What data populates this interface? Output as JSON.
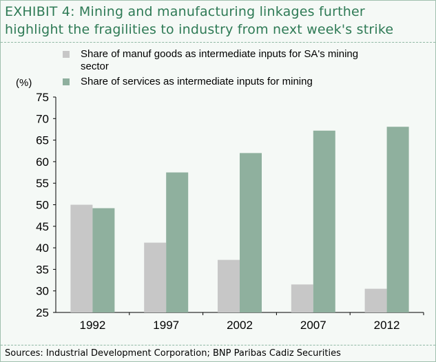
{
  "header": {
    "title_line1": "EXHIBIT 4:  Mining and manufacturing linkages further",
    "title_line2": "highlight the fragilities to industry from next week's strike"
  },
  "chart_data": {
    "type": "bar",
    "unit_label": "(%)",
    "categories": [
      "1992",
      "1997",
      "2002",
      "2007",
      "2012"
    ],
    "series": [
      {
        "name": "Share of manuf goods as intermediate inputs for SA's mining sector",
        "legend_line1": "Share of manuf goods as intermediate inputs for SA's mining",
        "legend_line2": "sector",
        "color": "#c7c7c7",
        "values": [
          50.0,
          41.2,
          37.2,
          31.5,
          30.5
        ]
      },
      {
        "name": "Share of services as intermediate inputs for mining",
        "legend_line1": "Share of services as intermediate inputs for mining",
        "color": "#8fb09e",
        "values": [
          49.2,
          57.5,
          62.0,
          67.2,
          68.1
        ]
      }
    ],
    "ylim": [
      25,
      75
    ],
    "yticks": [
      "25",
      "30",
      "35",
      "40",
      "45",
      "50",
      "55",
      "60",
      "65",
      "70",
      "75"
    ],
    "grid": false,
    "legend_position": "top"
  },
  "footer": {
    "sources": "Sources: Industrial Development Corporation; BNP Paribas Cadiz Securities"
  }
}
